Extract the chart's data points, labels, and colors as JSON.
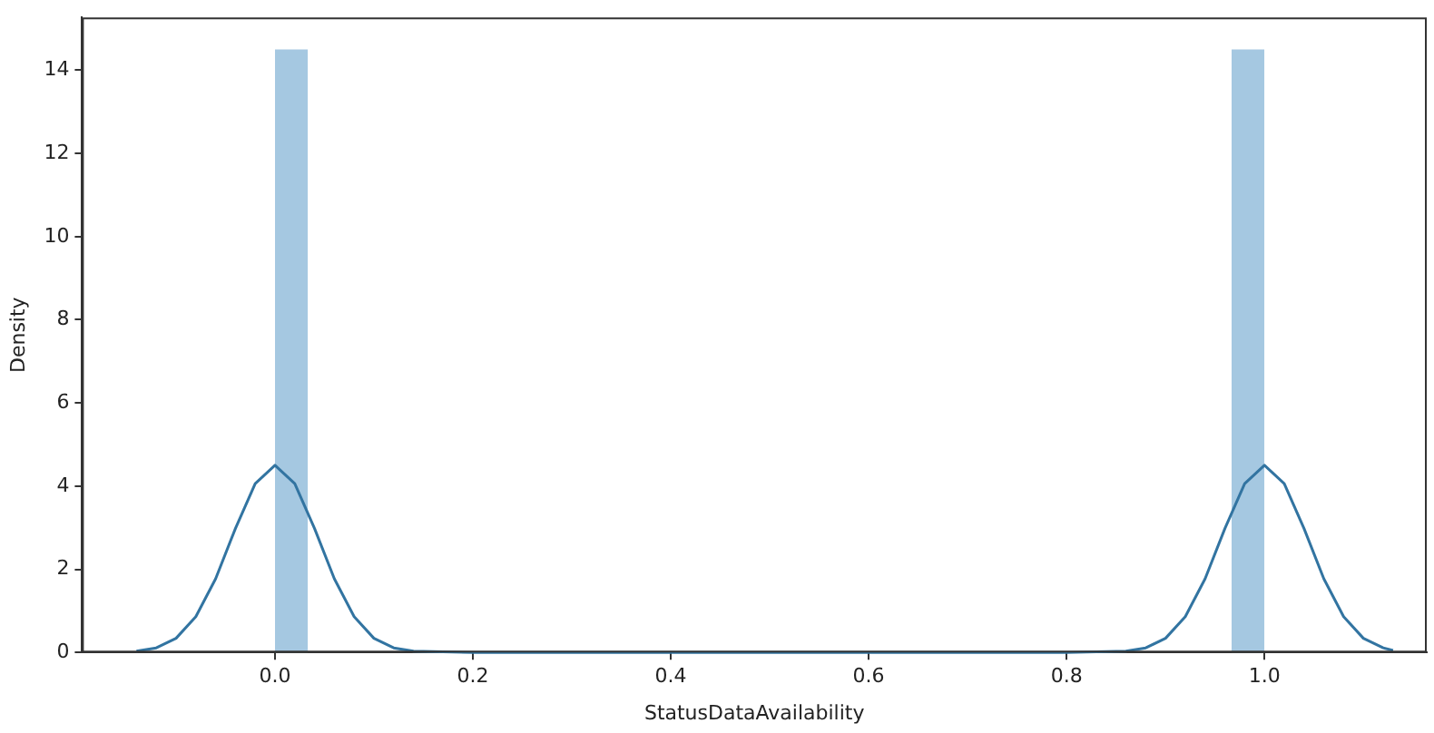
{
  "chart_data": {
    "type": "histogram",
    "xlabel": "StatusDataAvailability",
    "ylabel": "Density",
    "xlim": [
      -0.195,
      1.164
    ],
    "ylim": [
      0,
      15.27
    ],
    "xticks": [
      {
        "value": 0,
        "label": "0.0"
      },
      {
        "value": 0.2,
        "label": "0.2"
      },
      {
        "value": 0.4,
        "label": "0.4"
      },
      {
        "value": 0.6,
        "label": "0.6"
      },
      {
        "value": 0.8,
        "label": "0.8"
      },
      {
        "value": 1,
        "label": "1.0"
      }
    ],
    "yticks": [
      0,
      2,
      4,
      6,
      8,
      10,
      12,
      14
    ],
    "grid": false,
    "series": [
      {
        "color": "#a5c8e1",
        "bins": [
          0,
          0.0333,
          0.9667,
          1
        ],
        "values": [
          14.5,
          0,
          14.5
        ]
      },
      {
        "type": "line",
        "color": "#3274a1",
        "x": [
          -0.14,
          -0.12,
          -0.1,
          -0.08,
          -0.06,
          -0.04,
          -0.02,
          0,
          0.02,
          0.04,
          0.06,
          0.08,
          0.1,
          0.12,
          0.14,
          0.2,
          0.4,
          0.6,
          0.8,
          0.86,
          0.88,
          0.9,
          0.92,
          0.94,
          0.96,
          0.98,
          1,
          1.02,
          1.04,
          1.06,
          1.08,
          1.1,
          1.12,
          1.13
        ],
        "values": [
          0.03,
          0.11,
          0.34,
          0.86,
          1.77,
          2.98,
          4.06,
          4.5,
          4.06,
          2.98,
          1.77,
          0.86,
          0.34,
          0.11,
          0.03,
          0,
          0,
          0,
          0,
          0.03,
          0.11,
          0.34,
          0.86,
          1.77,
          2.98,
          4.06,
          4.5,
          4.06,
          2.98,
          1.77,
          0.86,
          0.34,
          0.11,
          0.05
        ]
      }
    ]
  }
}
